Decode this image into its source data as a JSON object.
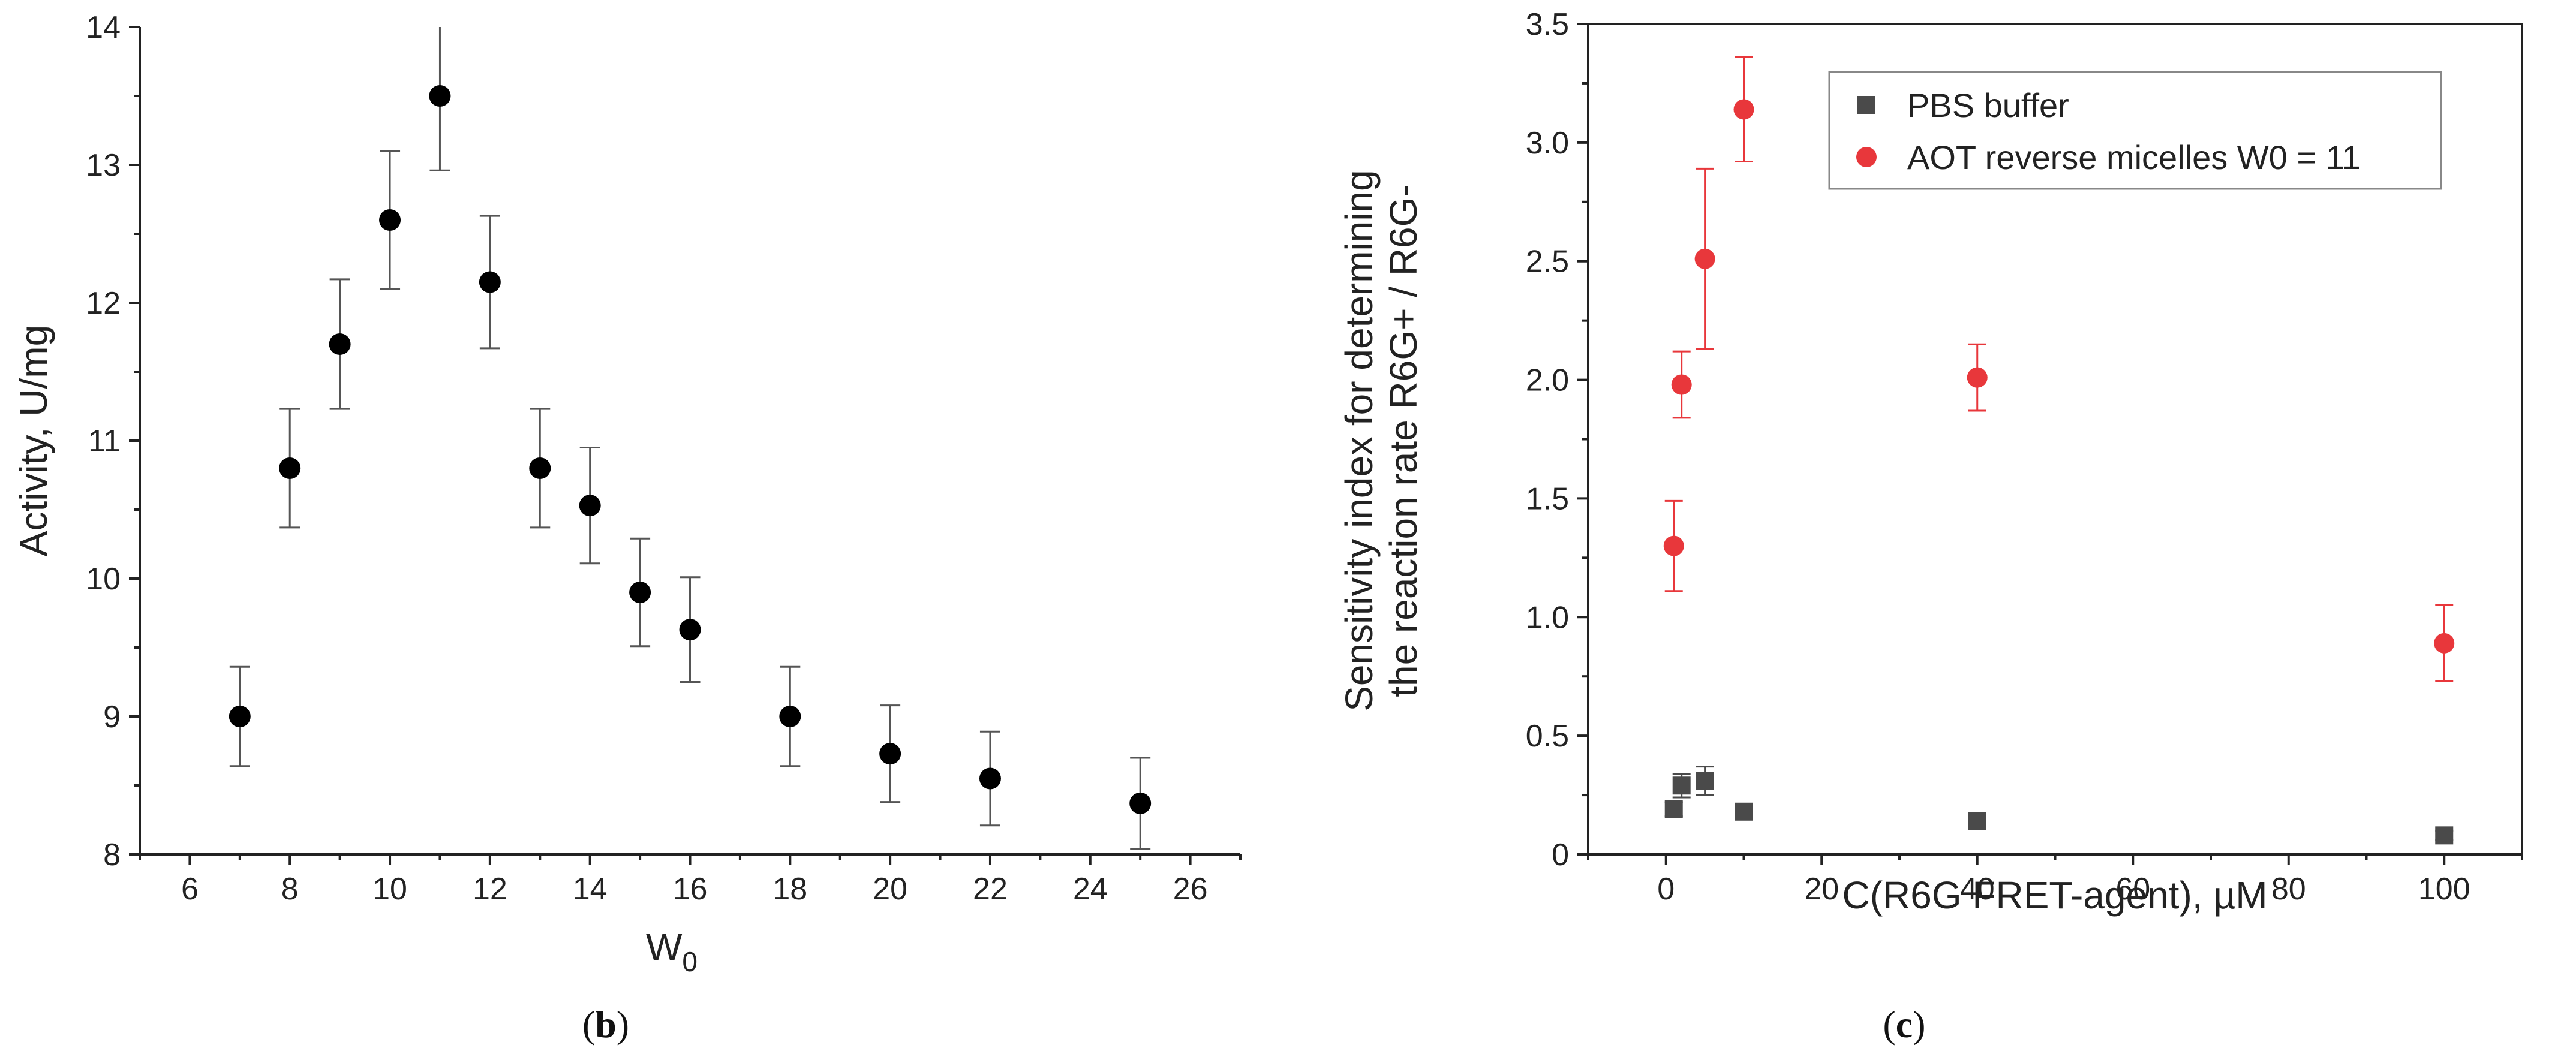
{
  "chart_data": [
    {
      "type": "scatter",
      "panel_label": {
        "open": "(",
        "letter": "b",
        "close": ")"
      },
      "xlabel": {
        "main": "W",
        "sub": "0"
      },
      "ylabel": "Activity, U/mg",
      "xlim": [
        5,
        27
      ],
      "ylim": [
        8,
        14
      ],
      "xticks": [
        "6",
        "8",
        "10",
        "12",
        "14",
        "16",
        "18",
        "20",
        "22",
        "24",
        "26"
      ],
      "yticks": [
        "8",
        "9",
        "10",
        "11",
        "12",
        "13",
        "14"
      ],
      "marker_color": "#000000",
      "errorbar_color": "#555555",
      "series": [
        {
          "name": "Activity",
          "x": [
            7,
            8,
            9,
            10,
            11,
            12,
            13,
            14,
            15,
            16,
            18,
            20,
            22,
            25
          ],
          "y": [
            9.0,
            10.8,
            11.7,
            12.6,
            13.5,
            12.15,
            10.8,
            10.53,
            9.9,
            9.63,
            9.0,
            8.73,
            8.55,
            8.37
          ],
          "err": [
            0.36,
            0.43,
            0.47,
            0.5,
            0.54,
            0.48,
            0.43,
            0.42,
            0.39,
            0.38,
            0.36,
            0.35,
            0.34,
            0.33
          ]
        }
      ]
    },
    {
      "type": "scatter",
      "panel_label": {
        "open": "(",
        "letter": "c",
        "close": ")"
      },
      "xlabel": "C(R6G FRET-agent), µM",
      "ylabel_lines": [
        "Sensitivity index for determining",
        "the reaction rate R6G+ / R6G-"
      ],
      "xlim": [
        -10,
        110
      ],
      "ylim": [
        0,
        3.5
      ],
      "xticks": [
        "0",
        "20",
        "40",
        "60",
        "80",
        "100"
      ],
      "yticks": [
        "0",
        "0.5",
        "1.0",
        "1.5",
        "2.0",
        "2.5",
        "3.0",
        "3.5"
      ],
      "legend_position": "top-right",
      "series": [
        {
          "name": "PBS buffer",
          "marker": "square",
          "color": "#4a4a4a",
          "x": [
            1,
            2,
            5,
            10,
            40,
            100
          ],
          "y": [
            0.19,
            0.29,
            0.31,
            0.18,
            0.14,
            0.08
          ],
          "err": [
            0.03,
            0.05,
            0.06,
            0.03,
            0.02,
            0.02
          ]
        },
        {
          "name": "AOT reverse micelles W0 = 11",
          "marker": "circle",
          "color": "#e8373b",
          "x": [
            1,
            2,
            5,
            10,
            40,
            100
          ],
          "y": [
            1.3,
            1.98,
            2.51,
            3.14,
            2.01,
            0.89
          ],
          "err": [
            0.19,
            0.14,
            0.38,
            0.22,
            0.14,
            0.16
          ]
        }
      ]
    }
  ]
}
